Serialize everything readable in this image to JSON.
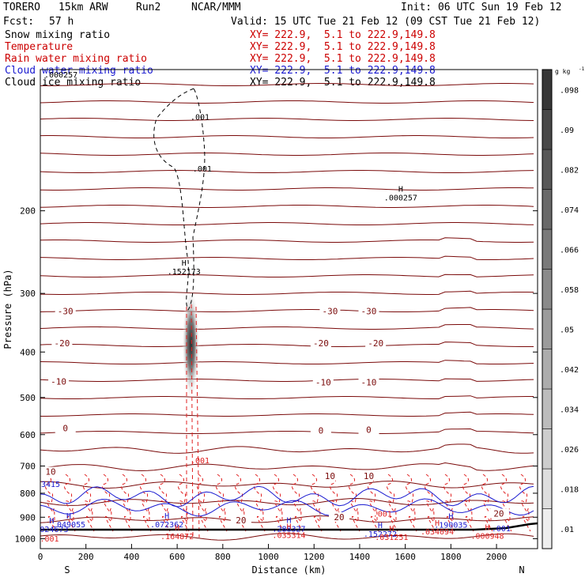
{
  "header": {
    "model": "TORERO",
    "resolution": "15km ARW",
    "run": "Run2",
    "org": "NCAR/MMM",
    "init": "Init: 06 UTC Sun 19 Feb 12",
    "fcst_label": "Fcst:",
    "fcst_value": "57 h",
    "valid": "Valid: 15 UTC Tue 21 Feb 12 (09 CST Tue 21 Feb 12)"
  },
  "fields": [
    {
      "name": "Snow mixing ratio",
      "xy": "XY= 222.9,  5.1 to 222.9,149.8",
      "color": "#000000"
    },
    {
      "name": "Temperature",
      "xy": "XY= 222.9,  5.1 to 222.9,149.8",
      "color": "#cc0000"
    },
    {
      "name": "Rain water mixing ratio",
      "xy": "XY= 222.9,  5.1 to 222.9,149.8",
      "color": "#cc0000"
    },
    {
      "name": "Cloud water mixing ratio",
      "xy": "XY= 222.9,  5.1 to 222.9,149.8",
      "color": "#1a1ad0"
    },
    {
      "name": "Cloud ice mixing ratio",
      "xy": "XY= 222.9,  5.1 to 222.9,149.8",
      "color": "#000000"
    }
  ],
  "colors": {
    "temperature": "#7a0a0a",
    "rain": "#e02020",
    "cloud_water": "#1a1ad0",
    "cloud_ice": "#000000"
  },
  "chart_data": {
    "type": "contour",
    "xlabel": "Distance (km)",
    "ylabel": "Pressure (hPa)",
    "xlim": [
      0,
      2180
    ],
    "x_ticks": [
      0,
      200,
      400,
      600,
      800,
      1000,
      1200,
      1400,
      1600,
      1800,
      2000
    ],
    "ylim": [
      1050,
      100
    ],
    "y_scale": "log",
    "y_ticks": [
      200,
      300,
      400,
      500,
      600,
      700,
      800,
      900,
      1000
    ],
    "x_endpoints": {
      "left": "S",
      "right": "N"
    },
    "colorbar": {
      "unit": "g kg",
      "unit_exp": "-1",
      "levels": [
        0.01,
        0.018,
        0.026,
        0.034,
        0.042,
        0.05,
        0.058,
        0.066,
        0.074,
        0.082,
        0.09,
        0.098
      ],
      "tick_labels": [
        ".01",
        ".018",
        ".026",
        ".034",
        ".042",
        ".05",
        ".058",
        ".066",
        ".074",
        ".082",
        ".09",
        ".098"
      ]
    },
    "snow_max": {
      "x": 660,
      "p": 400
    },
    "temperature_labels": [
      {
        "text": "-30",
        "x": 110,
        "p": 330
      },
      {
        "text": "-30",
        "x": 1270,
        "p": 330
      },
      {
        "text": "-30",
        "x": 1440,
        "p": 330
      },
      {
        "text": "-20",
        "x": 95,
        "p": 386
      },
      {
        "text": "-20",
        "x": 1230,
        "p": 386
      },
      {
        "text": "-20",
        "x": 1470,
        "p": 386
      },
      {
        "text": "-10",
        "x": 80,
        "p": 466
      },
      {
        "text": "-10",
        "x": 1240,
        "p": 468
      },
      {
        "text": "-10",
        "x": 1440,
        "p": 468
      },
      {
        "text": "0",
        "x": 110,
        "p": 586
      },
      {
        "text": "0",
        "x": 1230,
        "p": 592
      },
      {
        "text": "0",
        "x": 1440,
        "p": 590
      },
      {
        "text": "10",
        "x": 45,
        "p": 725
      },
      {
        "text": "10",
        "x": 1270,
        "p": 740
      },
      {
        "text": "10",
        "x": 1440,
        "p": 740
      },
      {
        "text": "20",
        "x": 1310,
        "p": 906
      },
      {
        "text": "20",
        "x": 2010,
        "p": 890
      },
      {
        "text": "20",
        "x": 880,
        "p": 920
      }
    ],
    "contour_labels": [
      {
        "text": ".001",
        "x": 700,
        "p": 128,
        "series": "cloud_ice"
      },
      {
        "text": ".001",
        "x": 710,
        "p": 165,
        "series": "cloud_ice"
      },
      {
        "text": ".001",
        "x": 700,
        "p": 690,
        "series": "rain"
      },
      {
        "text": ".001",
        "x": 1500,
        "p": 897,
        "series": "rain"
      },
      {
        "text": ".001",
        "x": 40,
        "p": 1013,
        "series": "rain"
      },
      {
        "text": ".001",
        "x": 2020,
        "p": 965,
        "series": "cloud_water"
      }
    ],
    "extrema": [
      {
        "mark": "H",
        "value": ".000257",
        "x": 1580,
        "p": 188,
        "series": "cloud_ice"
      },
      {
        "mark": "H",
        "value": ".152173",
        "x": 630,
        "p": 270,
        "series": "snow"
      },
      {
        "mark": "H",
        "value": ".049055",
        "x": 125,
        "p": 935,
        "series": "cloud_water"
      },
      {
        "mark": "H",
        "value": ".024673",
        "x": 50,
        "p": 956,
        "series": "cloud_water"
      },
      {
        "mark": "H",
        "value": ".072362",
        "x": 555,
        "p": 935,
        "series": "cloud_water"
      },
      {
        "mark": "H",
        "value": ".288327",
        "x": 1090,
        "p": 955,
        "series": "cloud_water"
      },
      {
        "mark": "H",
        "value": ".190035",
        "x": 1800,
        "p": 937,
        "series": "cloud_water"
      },
      {
        "mark": "H",
        "value": ".152272",
        "x": 1490,
        "p": 980,
        "series": "cloud_water"
      },
      {
        "mark": "H",
        "value": ".034094",
        "x": 1740,
        "p": 967,
        "series": "rain"
      },
      {
        "mark": "H",
        "value": ".000948",
        "x": 1960,
        "p": 988,
        "series": "rain"
      },
      {
        "mark": "H",
        "value": ".035314",
        "x": 1090,
        "p": 985,
        "series": "rain"
      },
      {
        "mark": "H",
        "value": ".031251",
        "x": 1540,
        "p": 995,
        "series": "rain"
      },
      {
        "mark": "H",
        "value": ".164872",
        "x": 600,
        "p": 990,
        "series": "rain"
      }
    ],
    "corner_labels": {
      "top_left": ".000257",
      "left_edge": "3415"
    }
  }
}
